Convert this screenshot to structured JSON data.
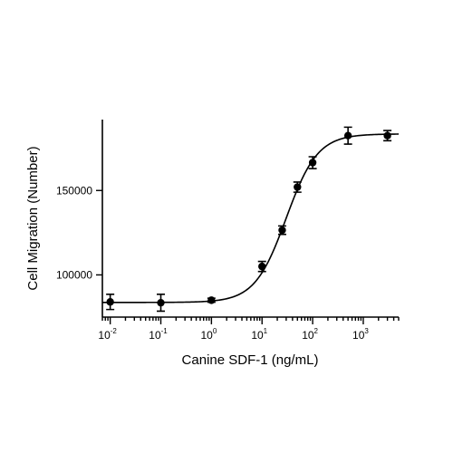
{
  "chart_data": {
    "type": "scatter",
    "title": "",
    "xlabel": "Canine SDF-1 (ng/mL)",
    "ylabel": "Cell Migration (Number)",
    "x_scale": "log",
    "xlim": [
      0.007,
      5000
    ],
    "ylim": [
      75000,
      192000
    ],
    "x_ticks": [
      {
        "value": 0.01,
        "label": "10",
        "exp": "-2"
      },
      {
        "value": 0.1,
        "label": "10",
        "exp": "-1"
      },
      {
        "value": 1,
        "label": "10",
        "exp": "0"
      },
      {
        "value": 10,
        "label": "10",
        "exp": "1"
      },
      {
        "value": 100,
        "label": "10",
        "exp": "2"
      },
      {
        "value": 1000,
        "label": "10",
        "exp": "3"
      }
    ],
    "y_ticks": [
      {
        "value": 100000,
        "label": "100000"
      },
      {
        "value": 150000,
        "label": "150000"
      }
    ],
    "points": [
      {
        "x": 0.01,
        "y": 84000,
        "err": 4500
      },
      {
        "x": 0.1,
        "y": 83500,
        "err": 5000
      },
      {
        "x": 1,
        "y": 85000,
        "err": 1200
      },
      {
        "x": 10,
        "y": 105000,
        "err": 3000
      },
      {
        "x": 25,
        "y": 126500,
        "err": 2500
      },
      {
        "x": 50,
        "y": 152000,
        "err": 3000
      },
      {
        "x": 100,
        "y": 166500,
        "err": 3500
      },
      {
        "x": 500,
        "y": 182500,
        "err": 5000
      },
      {
        "x": 3000,
        "y": 182500,
        "err": 3000
      }
    ],
    "fit": {
      "model": "4PL",
      "bottom": 83700,
      "top": 183500,
      "ec50": 30,
      "hill": 1.4
    },
    "grid": false,
    "legend": "none"
  }
}
